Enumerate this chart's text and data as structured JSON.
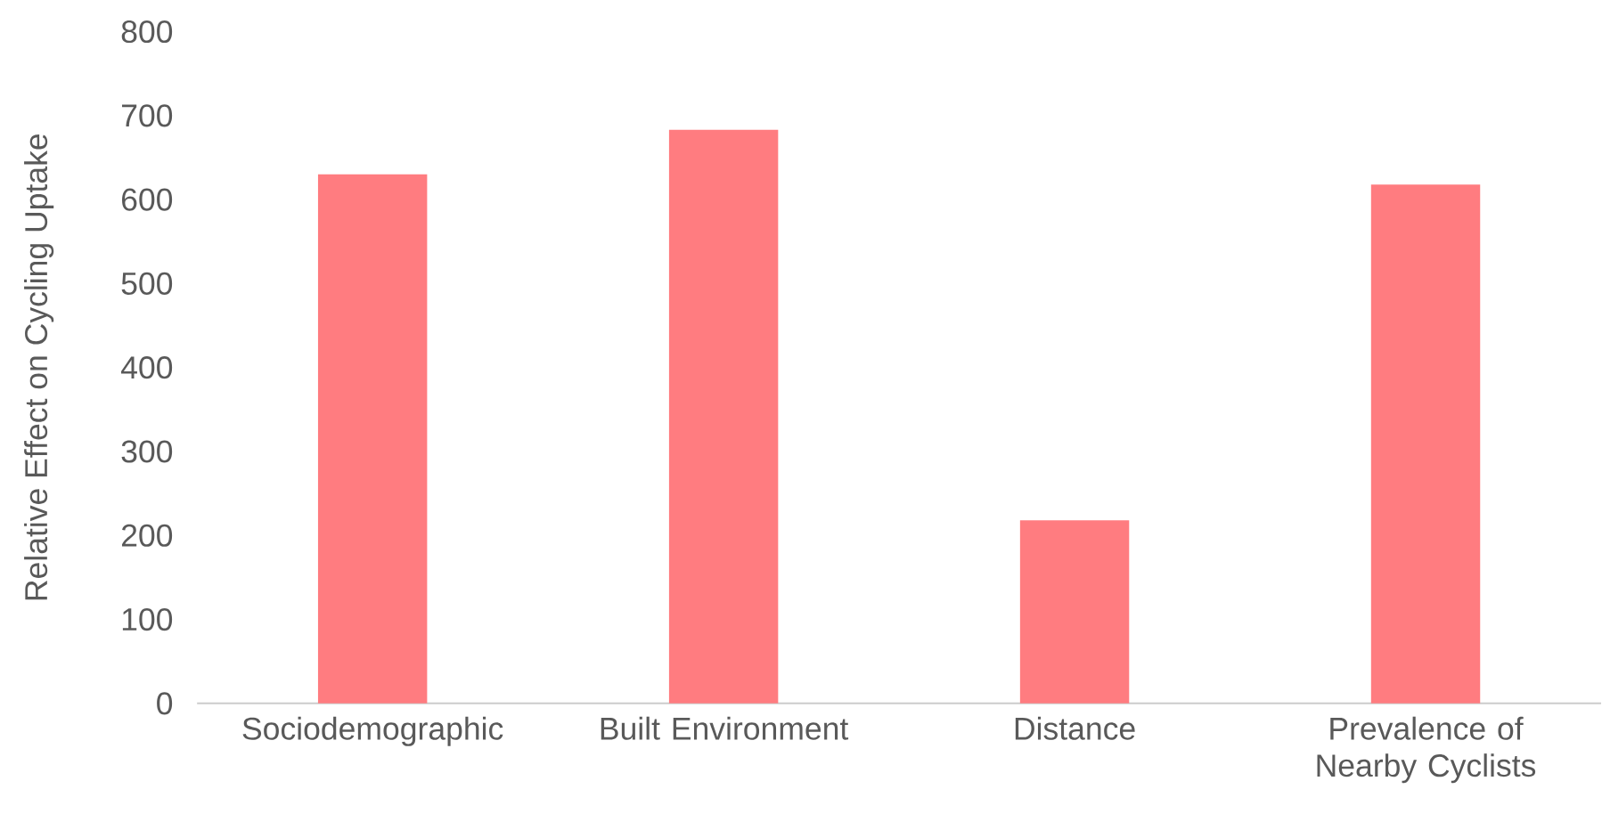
{
  "chart_data": {
    "type": "bar",
    "ylabel": "Relative Effect on Cycling Uptake",
    "categories": [
      "Sociodemographic",
      "Built Environment",
      "Distance",
      "Prevalence of Nearby Cyclists"
    ],
    "values": [
      630,
      683,
      218,
      618
    ],
    "color": "#ff7c80",
    "ylim": [
      0,
      800
    ],
    "yticks": [
      0,
      100,
      200,
      300,
      400,
      500,
      600,
      700,
      800
    ],
    "grid": false
  }
}
